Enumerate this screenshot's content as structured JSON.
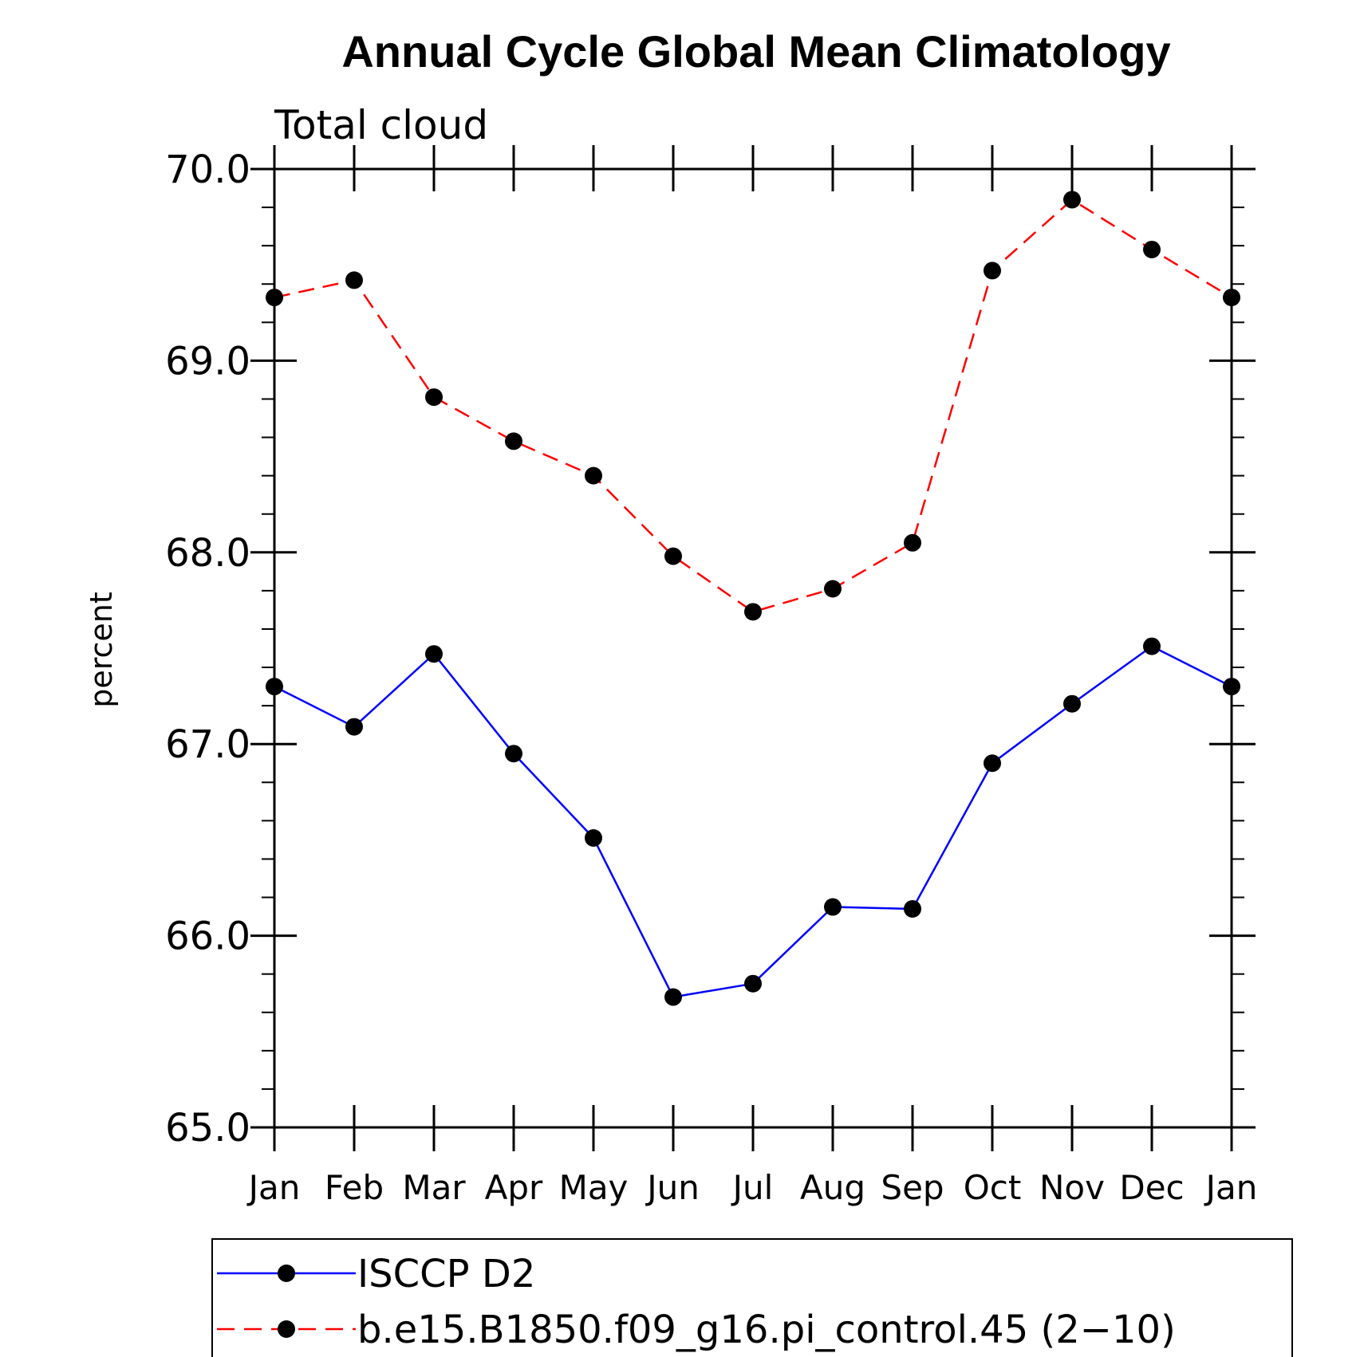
{
  "chart_data": {
    "type": "line",
    "title": "Annual Cycle Global Mean Climatology",
    "subtitle": "Total cloud",
    "ylabel": "percent",
    "xlabel": "",
    "ylim": [
      65.0,
      70.0
    ],
    "yticks": [
      "65.0",
      "66.0",
      "67.0",
      "68.0",
      "69.0",
      "70.0"
    ],
    "categories": [
      "Jan",
      "Feb",
      "Mar",
      "Apr",
      "May",
      "Jun",
      "Jul",
      "Aug",
      "Sep",
      "Oct",
      "Nov",
      "Dec",
      "Jan"
    ],
    "series": [
      {
        "name": "ISCCP D2",
        "color": "#0000ff",
        "dash": "solid",
        "values": [
          67.3,
          67.09,
          67.47,
          66.95,
          66.51,
          65.68,
          65.75,
          66.15,
          66.14,
          66.9,
          67.21,
          67.51,
          67.3
        ]
      },
      {
        "name": "b.e15.B1850.f09_g16.pi_control.45 (2−10)",
        "color": "#ff0000",
        "dash": "dashed",
        "values": [
          69.33,
          69.42,
          68.81,
          68.58,
          68.4,
          67.98,
          67.69,
          67.81,
          68.05,
          69.47,
          69.84,
          69.58,
          69.33
        ]
      }
    ],
    "marker": "filled-circle",
    "grid": false,
    "legend_position": "bottom"
  }
}
